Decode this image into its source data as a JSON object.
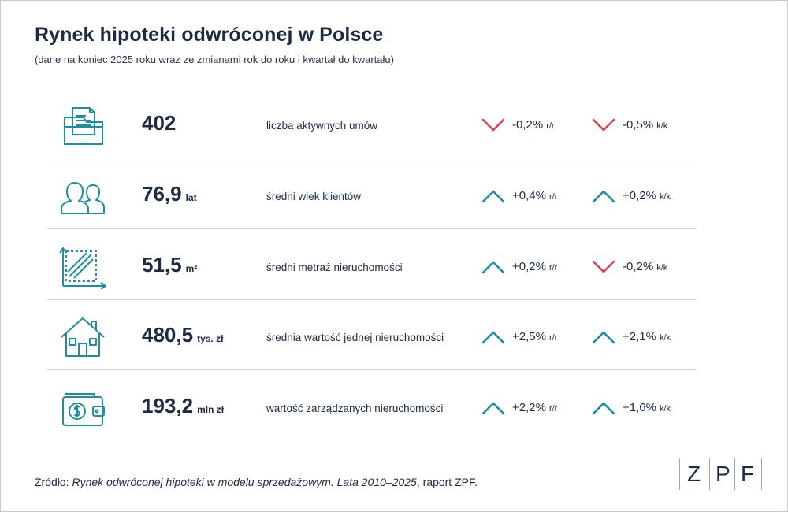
{
  "header": {
    "title": "Rynek hipoteki odwróconej w Polsce",
    "subtitle": "(dane na koniec 2025 roku wraz ze zmianami rok do roku i kwartał do kwartału)"
  },
  "colors": {
    "up": "#1e8fa3",
    "down": "#d8424f",
    "text": "#1e2a44",
    "icon": "#1e8fa3"
  },
  "rows": [
    {
      "icon": "document-folder-icon",
      "value": "402",
      "unit": "",
      "label": "liczba aktywnych umów",
      "yy": {
        "dir": "down",
        "pct": "-0,2%",
        "per": "r/r"
      },
      "qq": {
        "dir": "down",
        "pct": "-0,5%",
        "per": "k/k"
      }
    },
    {
      "icon": "people-icon",
      "value": "76,9",
      "unit": "lat",
      "label": "średni wiek klientów",
      "yy": {
        "dir": "up",
        "pct": "+0,4%",
        "per": "r/r"
      },
      "qq": {
        "dir": "up",
        "pct": "+0,2%",
        "per": "k/k"
      }
    },
    {
      "icon": "area-measure-icon",
      "value": "51,5",
      "unit": "m²",
      "label": "średni metraż nieruchomości",
      "yy": {
        "dir": "up",
        "pct": "+0,2%",
        "per": "r/r"
      },
      "qq": {
        "dir": "down",
        "pct": "-0,2%",
        "per": "k/k"
      }
    },
    {
      "icon": "house-icon",
      "value": "480,5",
      "unit": "tys. zł",
      "label": "średnia wartość jednej nieruchomości",
      "yy": {
        "dir": "up",
        "pct": "+2,5%",
        "per": "r/r"
      },
      "qq": {
        "dir": "up",
        "pct": "+2,1%",
        "per": "k/k"
      }
    },
    {
      "icon": "wallet-dollar-icon",
      "value": "193,2",
      "unit": "mln zł",
      "label": "wartość zarządzanych nieruchomości",
      "yy": {
        "dir": "up",
        "pct": "+2,2%",
        "per": "r/r"
      },
      "qq": {
        "dir": "up",
        "pct": "+1,6%",
        "per": "k/k"
      }
    }
  ],
  "footer": {
    "source_prefix": "Źródło: ",
    "source_title": "Rynek odwróconej hipoteki w modelu sprzedażowym. Lata 2010–2025",
    "source_suffix": ", raport ZPF.",
    "logo_letters": [
      "Z",
      "P",
      "F"
    ]
  }
}
